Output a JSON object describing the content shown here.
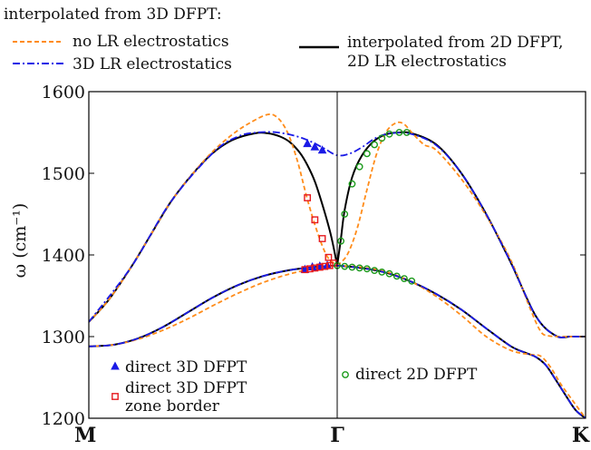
{
  "chart_data": {
    "type": "line",
    "ylabel": "ω (cm⁻¹)",
    "xticks": [
      "M",
      "Γ",
      "K"
    ],
    "ylim": [
      1200,
      1600
    ],
    "yticks": [
      1200,
      1300,
      1400,
      1500,
      1600
    ],
    "grid": false,
    "legend": {
      "header": "interpolated from 3D DFPT:",
      "entries": [
        {
          "label": "no LR electrostatics",
          "color": "#ff8c1a",
          "style": "dashed"
        },
        {
          "label": "3D LR electrostatics",
          "color": "#1a1ae6",
          "style": "dashdot"
        },
        {
          "label_lines": [
            "interpolated from 2D DFPT,",
            "2D LR electrostatics"
          ],
          "color": "#000000",
          "style": "solid"
        },
        {
          "label": "direct 3D DFPT",
          "color": "#1a1ae6",
          "marker": "triangle"
        },
        {
          "label_lines": [
            "direct 3D DFPT",
            "zone border"
          ],
          "color": "#e6191e",
          "marker": "square"
        },
        {
          "label": "direct 2D DFPT",
          "color": "#1a9a1a",
          "marker": "circle"
        }
      ]
    },
    "x_note": "path coordinate: M = 0, Γ = 1, K = 2",
    "series": [
      {
        "color": "#000000",
        "style": "solid",
        "x": [
          0,
          0.08,
          0.17,
          0.25,
          0.33,
          0.42,
          0.5,
          0.58,
          0.67,
          0.72,
          0.77,
          0.81,
          0.85,
          0.88,
          0.91,
          0.94,
          0.97,
          0.985,
          1.0
        ],
        "y": [
          1318,
          1345,
          1385,
          1425,
          1465,
          1500,
          1525,
          1541,
          1549,
          1549,
          1545,
          1538,
          1525,
          1510,
          1490,
          1462,
          1430,
          1410,
          1387
        ]
      },
      {
        "color": "#000000",
        "style": "solid",
        "x": [
          1.0,
          1.015,
          1.03,
          1.06,
          1.1,
          1.15,
          1.2,
          1.25,
          1.3,
          1.4,
          1.5,
          1.6,
          1.7,
          1.8,
          1.88,
          1.94,
          2.0
        ],
        "y": [
          1387,
          1420,
          1455,
          1495,
          1522,
          1540,
          1548,
          1550,
          1549,
          1535,
          1500,
          1450,
          1390,
          1325,
          1301,
          1300,
          1300
        ]
      },
      {
        "color": "#000000",
        "style": "solid",
        "x": [
          0,
          0.1,
          0.2,
          0.3,
          0.4,
          0.5,
          0.6,
          0.7,
          0.8,
          0.9,
          1.0
        ],
        "y": [
          1288,
          1290,
          1298,
          1312,
          1330,
          1348,
          1363,
          1374,
          1381,
          1385,
          1387
        ]
      },
      {
        "color": "#000000",
        "style": "solid",
        "x": [
          1.0,
          1.1,
          1.2,
          1.3,
          1.4,
          1.5,
          1.6,
          1.7,
          1.76,
          1.8,
          1.84,
          1.88,
          1.92,
          1.96,
          2.0
        ],
        "y": [
          1387,
          1384,
          1378,
          1367,
          1352,
          1333,
          1310,
          1288,
          1280,
          1275,
          1265,
          1247,
          1228,
          1210,
          1200
        ]
      },
      {
        "color": "#ff8c1a",
        "style": "dashed",
        "x": [
          0,
          0.08,
          0.17,
          0.25,
          0.33,
          0.42,
          0.5,
          0.58,
          0.65,
          0.72,
          0.76,
          0.8,
          0.84,
          0.88,
          0.92,
          0.96,
          1.0
        ],
        "y": [
          1318,
          1345,
          1385,
          1425,
          1465,
          1500,
          1527,
          1548,
          1562,
          1572,
          1568,
          1550,
          1515,
          1468,
          1428,
          1398,
          1387
        ]
      },
      {
        "color": "#ff8c1a",
        "style": "dashed",
        "x": [
          1.0,
          1.04,
          1.08,
          1.12,
          1.16,
          1.2,
          1.24,
          1.27,
          1.3,
          1.35,
          1.4,
          1.5,
          1.6,
          1.7,
          1.78,
          1.82,
          1.85,
          1.9,
          2.0
        ],
        "y": [
          1387,
          1400,
          1432,
          1480,
          1525,
          1552,
          1562,
          1560,
          1550,
          1535,
          1528,
          1493,
          1448,
          1393,
          1332,
          1306,
          1301,
          1300,
          1300
        ]
      },
      {
        "color": "#ff8c1a",
        "style": "dashed",
        "x": [
          0,
          0.1,
          0.2,
          0.3,
          0.4,
          0.5,
          0.6,
          0.7,
          0.8,
          0.9,
          1.0
        ],
        "y": [
          1288,
          1290,
          1297,
          1308,
          1322,
          1338,
          1353,
          1366,
          1376,
          1383,
          1387
        ]
      },
      {
        "color": "#ff8c1a",
        "style": "dashed",
        "x": [
          1.0,
          1.1,
          1.2,
          1.3,
          1.4,
          1.5,
          1.6,
          1.7,
          1.78,
          1.82,
          1.86,
          1.9,
          1.94,
          2.0
        ],
        "y": [
          1387,
          1385,
          1379,
          1367,
          1349,
          1326,
          1300,
          1283,
          1278,
          1276,
          1262,
          1242,
          1225,
          1200
        ]
      },
      {
        "color": "#1a1ae6",
        "style": "dashdot",
        "x": [
          0,
          0.17,
          0.33,
          0.5,
          0.6,
          0.68,
          0.76,
          0.84,
          0.9,
          0.95,
          1.0,
          1.05,
          1.1,
          1.16,
          1.22,
          1.3,
          1.4,
          1.5,
          1.6,
          1.7,
          1.8,
          1.88,
          1.94,
          2.0
        ],
        "y": [
          1318,
          1385,
          1465,
          1525,
          1545,
          1550,
          1550,
          1545,
          1538,
          1530,
          1522,
          1524,
          1532,
          1544,
          1549,
          1548,
          1534,
          1500,
          1450,
          1390,
          1325,
          1301,
          1300,
          1300
        ]
      },
      {
        "color": "#1a1ae6",
        "style": "dashdot",
        "x": [
          0,
          0.1,
          0.2,
          0.3,
          0.4,
          0.5,
          0.6,
          0.7,
          0.8,
          0.9,
          1.0
        ],
        "y": [
          1288,
          1290,
          1298,
          1312,
          1330,
          1348,
          1363,
          1374,
          1381,
          1385,
          1387
        ]
      },
      {
        "color": "#1a1ae6",
        "style": "dashdot",
        "x": [
          1.0,
          1.1,
          1.2,
          1.3,
          1.4,
          1.5,
          1.6,
          1.7,
          1.76,
          1.8,
          1.84,
          1.88,
          1.92,
          1.96,
          2.0
        ],
        "y": [
          1387,
          1384,
          1378,
          1367,
          1352,
          1333,
          1310,
          1288,
          1280,
          1275,
          1265,
          1247,
          1228,
          1210,
          1200
        ]
      }
    ],
    "markers": [
      {
        "kind": "triangle",
        "color": "#1a1ae6",
        "points": [
          [
            0.88,
            1536
          ],
          [
            0.91,
            1532
          ],
          [
            0.94,
            1528
          ],
          [
            0.87,
            1382
          ],
          [
            0.9,
            1385
          ],
          [
            0.93,
            1386
          ],
          [
            0.96,
            1387
          ]
        ]
      },
      {
        "kind": "square",
        "color": "#e6191e",
        "points": [
          [
            0.88,
            1470
          ],
          [
            0.91,
            1443
          ],
          [
            0.94,
            1420
          ],
          [
            0.965,
            1397
          ],
          [
            0.985,
            1390
          ],
          [
            0.87,
            1382
          ],
          [
            0.89,
            1383
          ],
          [
            0.91,
            1384
          ],
          [
            0.93,
            1385
          ],
          [
            0.95,
            1386
          ],
          [
            0.97,
            1387
          ]
        ]
      },
      {
        "kind": "circle",
        "color": "#1a9a1a",
        "points": [
          [
            1.015,
            1417
          ],
          [
            1.03,
            1450
          ],
          [
            1.06,
            1487
          ],
          [
            1.09,
            1508
          ],
          [
            1.12,
            1524
          ],
          [
            1.15,
            1535
          ],
          [
            1.18,
            1543
          ],
          [
            1.21,
            1548
          ],
          [
            1.25,
            1550
          ],
          [
            1.28,
            1550
          ],
          [
            1.0,
            1387
          ],
          [
            1.03,
            1386
          ],
          [
            1.06,
            1385
          ],
          [
            1.09,
            1384
          ],
          [
            1.12,
            1383
          ],
          [
            1.15,
            1381
          ],
          [
            1.18,
            1379
          ],
          [
            1.21,
            1377
          ],
          [
            1.24,
            1374
          ],
          [
            1.27,
            1371
          ],
          [
            1.3,
            1368
          ]
        ]
      }
    ]
  }
}
